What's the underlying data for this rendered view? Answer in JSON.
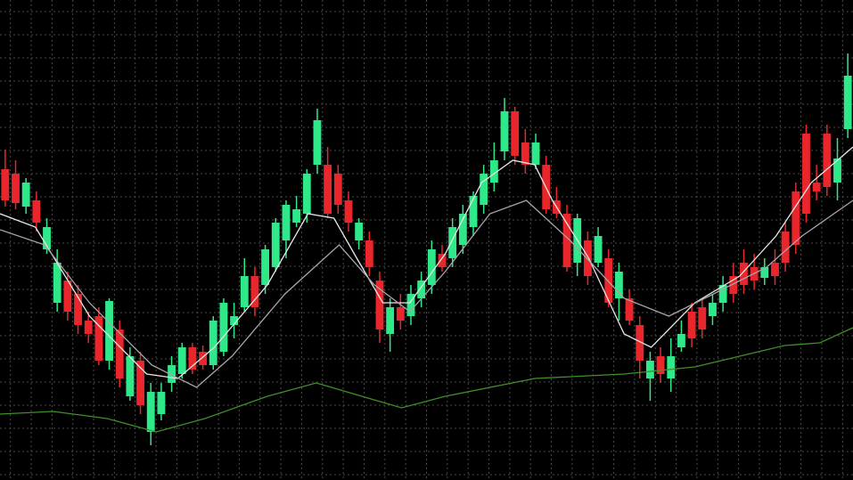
{
  "chart_data": {
    "type": "candlestick",
    "up_color": "#2ee88a",
    "down_color": "#e8262b",
    "grid": true,
    "grid_color": "#4a4a4a",
    "background": "#000000",
    "xlim": [
      -0.5,
      81.5
    ],
    "ylim": [
      0,
      539
    ],
    "xticks": [
      0.5,
      2.5,
      4.5,
      6.5,
      8.5,
      10.5,
      12.5,
      14.5,
      16.5,
      18.5,
      20.5,
      22.5,
      24.5,
      26.5,
      28.5,
      30.5,
      32.5,
      34.5,
      36.5,
      38.5,
      40.5,
      42.5,
      44.5,
      46.5,
      48.5,
      50.5,
      52.5,
      54.5,
      56.5,
      58.5,
      60.5,
      62.5,
      64.5,
      66.5,
      68.5,
      70.5,
      72.5,
      74.5,
      76.5,
      78.5,
      80.5
    ],
    "yticks": [
      6,
      32,
      58,
      84,
      110,
      136,
      162,
      188,
      214,
      240,
      266,
      292,
      318,
      344,
      370,
      396,
      422,
      448,
      474,
      500,
      526
    ],
    "x": [
      0,
      1,
      2,
      3,
      4,
      5,
      6,
      7,
      8,
      9,
      10,
      11,
      12,
      13,
      14,
      15,
      16,
      17,
      18,
      19,
      20,
      21,
      22,
      23,
      24,
      25,
      26,
      27,
      28,
      29,
      30,
      31,
      32,
      33,
      34,
      35,
      36,
      37,
      38,
      39,
      40,
      41,
      42,
      43,
      44,
      45,
      46,
      47,
      48,
      49,
      50,
      51,
      52,
      53,
      54,
      55,
      56,
      57,
      58,
      59,
      60,
      61,
      62,
      63,
      64,
      65,
      66,
      67,
      68,
      69,
      70,
      71,
      72,
      73,
      74,
      75,
      76,
      77,
      78,
      79,
      80,
      81
    ],
    "open": [
      349,
      344,
      307,
      314,
      259,
      199,
      224,
      209,
      179,
      184,
      134,
      169,
      94,
      134,
      54,
      74,
      109,
      119,
      149,
      144,
      129,
      144,
      174,
      194,
      229,
      219,
      239,
      269,
      289,
      299,
      354,
      354,
      344,
      314,
      269,
      269,
      224,
      164,
      194,
      184,
      204,
      219,
      254,
      249,
      264,
      284,
      309,
      334,
      369,
      414,
      379,
      354,
      354,
      314,
      299,
      244,
      269,
      244,
      249,
      204,
      204,
      174,
      114,
      139,
      114,
      149,
      189,
      194,
      184,
      199,
      229,
      244,
      239,
      227,
      244,
      279,
      324,
      389,
      334,
      389,
      334,
      394
    ],
    "high": [
      371,
      359,
      339,
      324,
      294,
      259,
      234,
      219,
      189,
      194,
      204,
      179,
      149,
      144,
      109,
      109,
      139,
      154,
      154,
      151,
      184,
      204,
      199,
      249,
      239,
      264,
      294,
      314,
      319,
      349,
      417,
      374,
      354,
      324,
      294,
      279,
      234,
      204,
      209,
      219,
      234,
      269,
      264,
      294,
      309,
      324,
      354,
      379,
      429,
      419,
      394,
      389,
      364,
      329,
      309,
      299,
      279,
      284,
      259,
      244,
      214,
      184,
      144,
      149,
      159,
      179,
      199,
      204,
      209,
      229,
      244,
      259,
      254,
      249,
      259,
      289,
      334,
      399,
      354,
      399,
      384,
      479
    ],
    "low": [
      307,
      304,
      299,
      279,
      254,
      189,
      179,
      164,
      154,
      129,
      124,
      104,
      89,
      74,
      39,
      67,
      99,
      114,
      119,
      124,
      124,
      139,
      159,
      189,
      184,
      209,
      234,
      249,
      284,
      289,
      344,
      294,
      299,
      279,
      259,
      229,
      154,
      144,
      169,
      174,
      194,
      209,
      234,
      239,
      254,
      274,
      299,
      324,
      359,
      354,
      344,
      349,
      299,
      294,
      234,
      229,
      219,
      239,
      194,
      179,
      174,
      114,
      89,
      109,
      99,
      144,
      149,
      159,
      174,
      189,
      199,
      209,
      214,
      219,
      219,
      234,
      254,
      289,
      314,
      319,
      314,
      384
    ],
    "close": [
      314,
      311,
      334,
      289,
      284,
      244,
      189,
      174,
      164,
      134,
      201,
      114,
      139,
      84,
      99,
      99,
      129,
      149,
      124,
      129,
      179,
      199,
      184,
      229,
      194,
      259,
      289,
      309,
      304,
      344,
      404,
      299,
      309,
      289,
      289,
      239,
      169,
      194,
      179,
      209,
      224,
      259,
      239,
      284,
      299,
      319,
      344,
      359,
      414,
      364,
      354,
      379,
      304,
      299,
      239,
      294,
      229,
      274,
      199,
      234,
      179,
      134,
      134,
      119,
      139,
      164,
      159,
      169,
      199,
      219,
      209,
      219,
      224,
      239,
      229,
      244,
      264,
      299,
      324,
      329,
      361,
      454
    ],
    "lines": [
      {
        "color": "#e8e8e8",
        "x": [
          -0.5,
          2.9,
          8.1,
          13.6,
          16.6,
          20.1,
          25.2,
          29.1,
          31.6,
          33.8,
          36.3,
          38.9,
          42.3,
          45.8,
          48.8,
          50.9,
          52.6,
          56.1,
          59.5,
          62.1,
          66.3,
          70.6,
          74.1,
          77.5,
          81.5
        ],
        "values": [
          299,
          284,
          184,
          119,
          114,
          149,
          219,
          299,
          294,
          249,
          199,
          199,
          254,
          334,
          359,
          354,
          314,
          249,
          164,
          149,
          199,
          229,
          274,
          334,
          374
        ]
      },
      {
        "color": "#a9a4ad",
        "x": [
          -0.5,
          3.8,
          8.1,
          14.1,
          18.4,
          21.8,
          26.9,
          32.1,
          35.5,
          38.9,
          42.3,
          46.6,
          50.1,
          54.3,
          59.5,
          63.8,
          68.1,
          73.2,
          76.6,
          81.5
        ],
        "values": [
          281,
          264,
          199,
          129,
          104,
          139,
          209,
          264,
          219,
          189,
          234,
          299,
          314,
          269,
          204,
          184,
          209,
          239,
          274,
          314
        ]
      },
      {
        "color": "#3f8f2a",
        "x": [
          -0.5,
          4.6,
          9.8,
          14.5,
          19.2,
          25.2,
          29.9,
          38.1,
          42.3,
          50.9,
          59.5,
          66.3,
          74.9,
          78.3,
          81.5
        ],
        "values": [
          74,
          77,
          69,
          54,
          69,
          94,
          109,
          81,
          94,
          114,
          119,
          127,
          151,
          154,
          171
        ]
      }
    ]
  }
}
